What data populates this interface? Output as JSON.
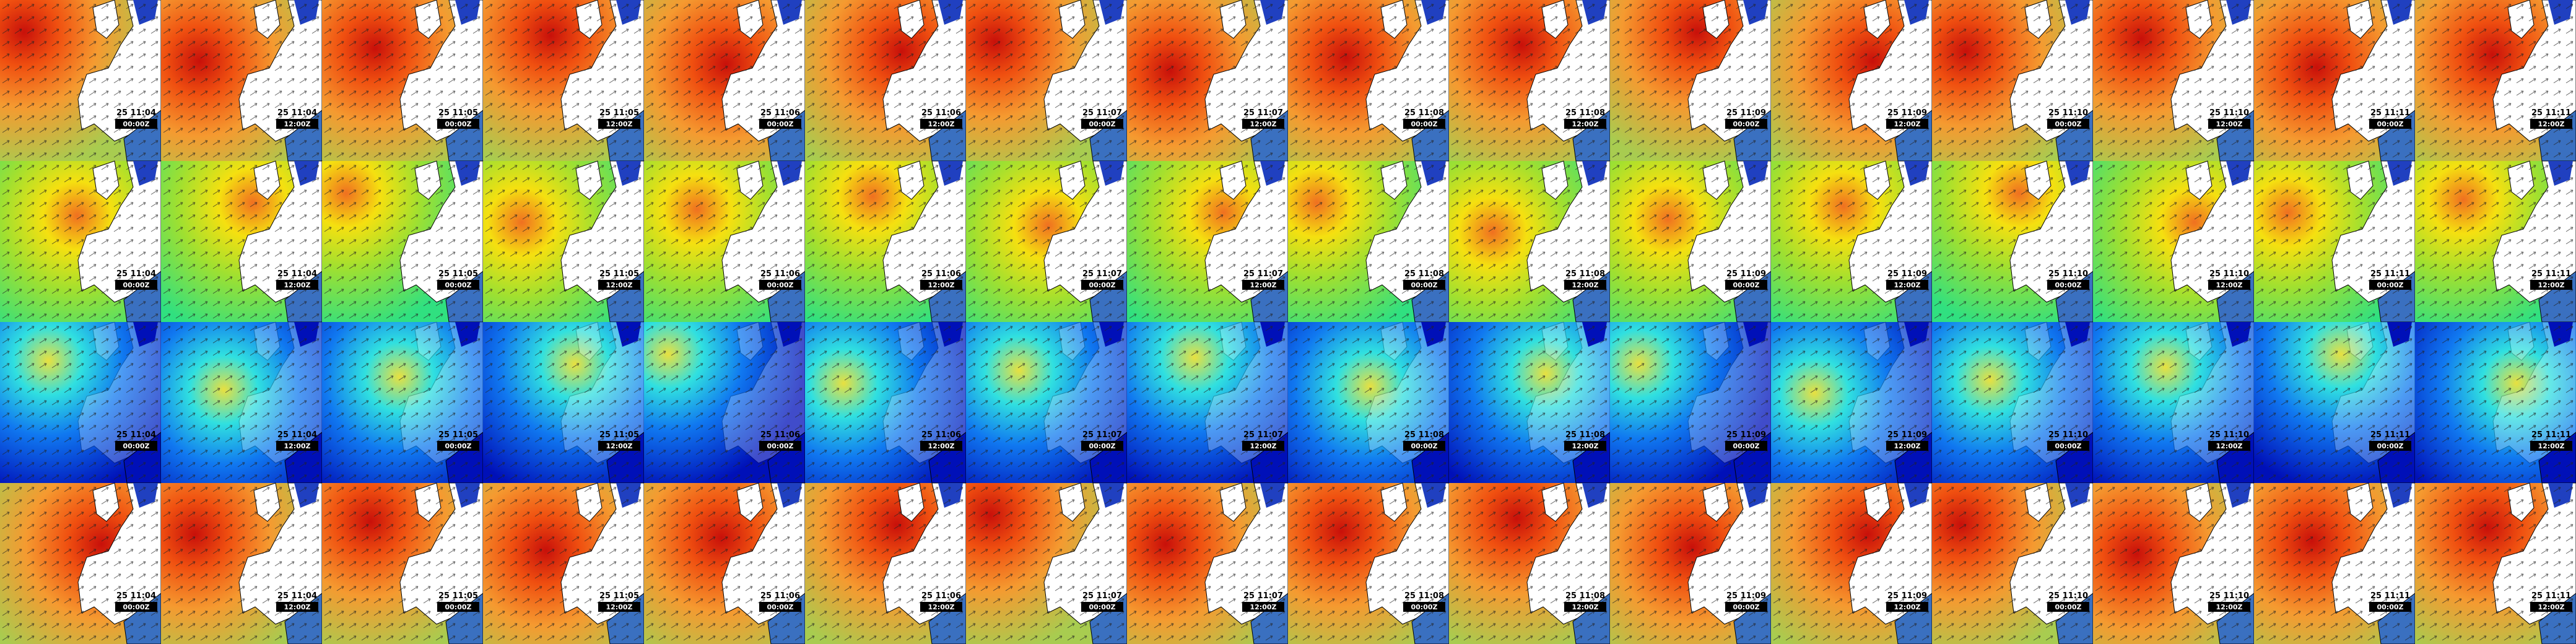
{
  "rows": [
    {
      "frames": [
        {
          "date": "25 11:04",
          "time": "00:00Z"
        },
        {
          "date": "25 11:04",
          "time": "12:00Z"
        },
        {
          "date": "25 11:05",
          "time": "00:00Z"
        },
        {
          "date": "25 11:05",
          "time": "12:00Z"
        },
        {
          "date": "25 11:06",
          "time": "00:00Z"
        },
        {
          "date": "25 11:06",
          "time": "12:00Z"
        },
        {
          "date": "25 11:07",
          "time": "00:00Z"
        },
        {
          "date": "25 11:07",
          "time": "12:00Z"
        },
        {
          "date": "25 11:08",
          "time": "00:00Z"
        },
        {
          "date": "25 11:08",
          "time": "12:00Z"
        },
        {
          "date": "25 11:09",
          "time": "00:00Z"
        },
        {
          "date": "25 11:09",
          "time": "12:00Z"
        },
        {
          "date": "25 11:10",
          "time": "00:00Z"
        },
        {
          "date": "25 11:10",
          "time": "12:00Z"
        },
        {
          "date": "25 11:11",
          "time": "00:00Z"
        },
        {
          "date": "25 11:11",
          "time": "12:00Z"
        }
      ]
    },
    {
      "frames": [
        {
          "date": "25 11:04",
          "time": "00:00Z"
        },
        {
          "date": "25 11:04",
          "time": "12:00Z"
        },
        {
          "date": "25 11:05",
          "time": "00:00Z"
        },
        {
          "date": "25 11:05",
          "time": "12:00Z"
        },
        {
          "date": "25 11:06",
          "time": "00:00Z"
        },
        {
          "date": "25 11:06",
          "time": "12:00Z"
        },
        {
          "date": "25 11:07",
          "time": "00:00Z"
        },
        {
          "date": "25 11:07",
          "time": "12:00Z"
        },
        {
          "date": "25 11:08",
          "time": "00:00Z"
        },
        {
          "date": "25 11:08",
          "time": "12:00Z"
        },
        {
          "date": "25 11:09",
          "time": "00:00Z"
        },
        {
          "date": "25 11:09",
          "time": "12:00Z"
        },
        {
          "date": "25 11:10",
          "time": "00:00Z"
        },
        {
          "date": "25 11:10",
          "time": "12:00Z"
        },
        {
          "date": "25 11:11",
          "time": "00:00Z"
        },
        {
          "date": "25 11:11",
          "time": "12:00Z"
        }
      ]
    },
    {
      "frames": [
        {
          "date": "25 11:04",
          "time": "00:00Z"
        },
        {
          "date": "25 11:04",
          "time": "12:00Z"
        },
        {
          "date": "25 11:05",
          "time": "00:00Z"
        },
        {
          "date": "25 11:05",
          "time": "12:00Z"
        },
        {
          "date": "25 11:06",
          "time": "00:00Z"
        },
        {
          "date": "25 11:06",
          "time": "12:00Z"
        },
        {
          "date": "25 11:07",
          "time": "00:00Z"
        },
        {
          "date": "25 11:07",
          "time": "12:00Z"
        },
        {
          "date": "25 11:08",
          "time": "00:00Z"
        },
        {
          "date": "25 11:08",
          "time": "12:00Z"
        },
        {
          "date": "25 11:09",
          "time": "00:00Z"
        },
        {
          "date": "25 11:09",
          "time": "12:00Z"
        },
        {
          "date": "25 11:10",
          "time": "00:00Z"
        },
        {
          "date": "25 11:10",
          "time": "12:00Z"
        },
        {
          "date": "25 11:11",
          "time": "00:00Z"
        },
        {
          "date": "25 11:11",
          "time": "12:00Z"
        }
      ]
    },
    {
      "frames": [
        {
          "date": "25 11:04",
          "time": "00:00Z"
        },
        {
          "date": "25 11:04",
          "time": "12:00Z"
        },
        {
          "date": "25 11:05",
          "time": "00:00Z"
        },
        {
          "date": "25 11:05",
          "time": "12:00Z"
        },
        {
          "date": "25 11:06",
          "time": "00:00Z"
        },
        {
          "date": "25 11:06",
          "time": "12:00Z"
        },
        {
          "date": "25 11:07",
          "time": "00:00Z"
        },
        {
          "date": "25 11:07",
          "time": "12:00Z"
        },
        {
          "date": "25 11:08",
          "time": "00:00Z"
        },
        {
          "date": "25 11:08",
          "time": "12:00Z"
        },
        {
          "date": "25 11:09",
          "time": "00:00Z"
        },
        {
          "date": "25 11:09",
          "time": "12:00Z"
        },
        {
          "date": "25 11:10",
          "time": "00:00Z"
        },
        {
          "date": "25 11:10",
          "time": "12:00Z"
        },
        {
          "date": "25 11:11",
          "time": "00:00Z"
        },
        {
          "date": "25 11:11",
          "time": "12:00Z"
        }
      ]
    }
  ]
}
